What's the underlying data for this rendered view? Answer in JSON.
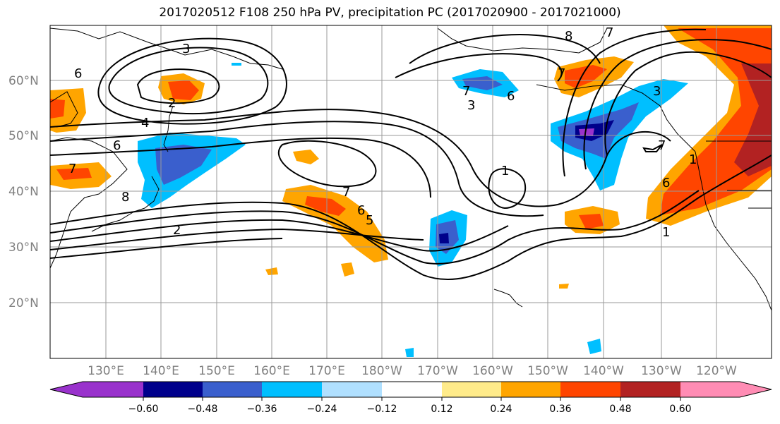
{
  "title": "2017020512 F108 250 hPa PV, precipitation PC (2017020900 - 2017021000)",
  "map": {
    "lon_labels": [
      "130°E",
      "140°E",
      "150°E",
      "160°E",
      "170°E",
      "180°W",
      "170°W",
      "160°W",
      "150°W",
      "140°W",
      "130°W",
      "120°W"
    ],
    "lat_labels": [
      "60°N",
      "50°N",
      "40°N",
      "30°N",
      "20°N"
    ],
    "contour_labels": [
      "3",
      "6",
      "2",
      "4",
      "6",
      "7",
      "8",
      "2",
      "7",
      "6",
      "5",
      "1",
      "3",
      "6",
      "7",
      "3",
      "8",
      "7",
      "1",
      "6",
      "1",
      "7",
      "7"
    ]
  },
  "colorbar": {
    "ticks": [
      "−0.60",
      "−0.48",
      "−0.36",
      "−0.24",
      "−0.12",
      "0.12",
      "0.24",
      "0.36",
      "0.48",
      "0.60"
    ],
    "colors": [
      "#9932cc",
      "#00008b",
      "#3a5fcd",
      "#00bfff",
      "#b0e0ff",
      "#ffffff",
      "#ffeb8a",
      "#ffa500",
      "#ff4500",
      "#b22222",
      "#ff8cb4"
    ]
  }
}
